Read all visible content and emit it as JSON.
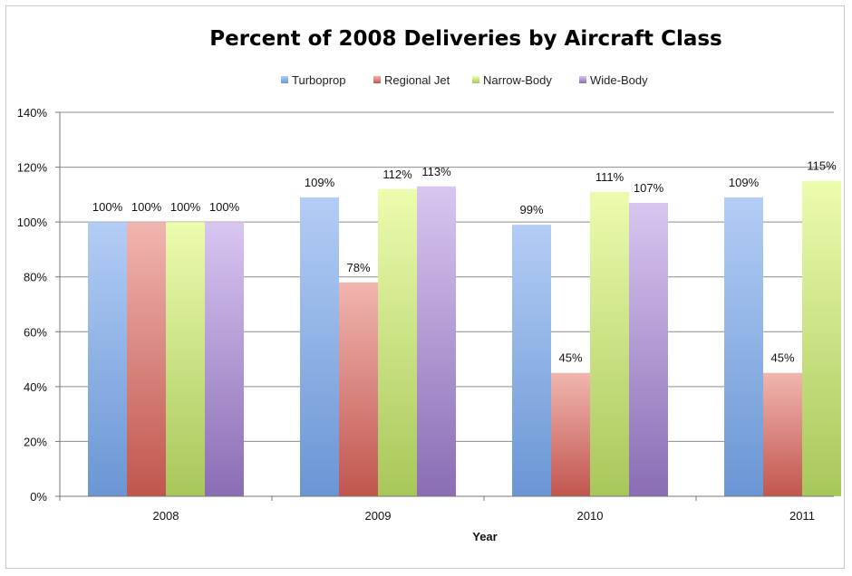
{
  "chart_data": {
    "type": "bar",
    "title": "Percent of 2008 Deliveries by Aircraft Class",
    "xlabel": "Year",
    "ylabel": "",
    "categories": [
      "2008",
      "2009",
      "2010",
      "2011"
    ],
    "ylim": [
      0,
      140
    ],
    "yticks": [
      0,
      20,
      40,
      60,
      80,
      100,
      120,
      140
    ],
    "ytick_labels": [
      "0%",
      "20%",
      "40%",
      "60%",
      "80%",
      "100%",
      "120%",
      "140%"
    ],
    "grid": true,
    "legend_position": "top-center",
    "series": [
      {
        "name": "Turboprop",
        "values": [
          100,
          109,
          99,
          109
        ],
        "labels": [
          "100%",
          "109%",
          "99%",
          "109%"
        ],
        "color_top": "#b3cdf5",
        "color_bottom": "#6a96d4"
      },
      {
        "name": "Regional Jet",
        "values": [
          100,
          78,
          45,
          45
        ],
        "labels": [
          "100%",
          "78%",
          "45%",
          "45%"
        ],
        "color_top": "#f1b5b0",
        "color_bottom": "#c0564e"
      },
      {
        "name": "Narrow-Body",
        "values": [
          100,
          112,
          111,
          115
        ],
        "labels": [
          "100%",
          "112%",
          "111%",
          "115%"
        ],
        "color_top": "#ecfcae",
        "color_bottom": "#a8c75a"
      },
      {
        "name": "Wide-Body",
        "values": [
          100,
          113,
          107,
          null
        ],
        "labels": [
          "100%",
          "113%",
          "107%",
          ""
        ],
        "color_top": "#d8c6f0",
        "color_bottom": "#8a6db5"
      }
    ]
  }
}
